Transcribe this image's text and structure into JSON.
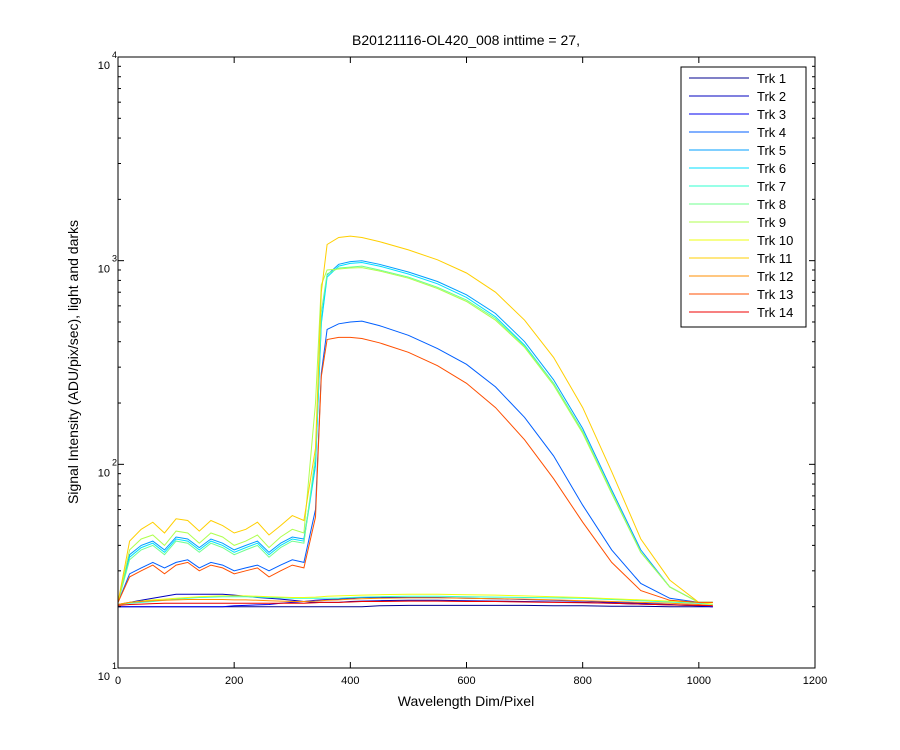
{
  "chart_data": {
    "type": "line",
    "title": "B20121116-OL420_008 inttime = 27,",
    "xlabel": "Wavelength Dim/Pixel",
    "ylabel": "Signal Intensity (ADU/pix/sec), light and darks",
    "xlim": [
      0,
      1200
    ],
    "ylim": [
      10,
      10000
    ],
    "yscale": "log",
    "x_ticks": [
      "0",
      "200",
      "400",
      "600",
      "800",
      "1000",
      "1200"
    ],
    "y_ticks": [
      {
        "base": "10",
        "exp": "1"
      },
      {
        "base": "10",
        "exp": "2"
      },
      {
        "base": "10",
        "exp": "3"
      },
      {
        "base": "10",
        "exp": "4"
      }
    ],
    "grid": false,
    "legend_position": "top-right",
    "x": [
      0,
      20,
      40,
      60,
      80,
      100,
      120,
      140,
      160,
      180,
      200,
      220,
      240,
      260,
      280,
      300,
      320,
      340,
      350,
      360,
      380,
      400,
      420,
      450,
      500,
      550,
      600,
      650,
      700,
      750,
      800,
      850,
      900,
      950,
      1000,
      1024
    ],
    "series": [
      {
        "name": "Trk 1",
        "color": "#00008f",
        "values": [
          20,
          20,
          20,
          20,
          20,
          20,
          20,
          20,
          20,
          20,
          20,
          20,
          20,
          20,
          20,
          20,
          20,
          20,
          20,
          20,
          20,
          20,
          20,
          20.2,
          20.3,
          20.3,
          20.3,
          20.3,
          20.3,
          20.2,
          20.2,
          20.1,
          20.1,
          20,
          20,
          20
        ]
      },
      {
        "name": "Trk 2",
        "color": "#0000bf",
        "values": [
          20.5,
          21,
          21.5,
          22,
          22.5,
          23,
          23,
          23,
          23,
          23,
          22.8,
          22.5,
          22.2,
          22,
          21.8,
          21.5,
          21.2,
          21,
          21,
          21,
          21,
          21.2,
          21.3,
          21.4,
          21.5,
          21.5,
          21.4,
          21.3,
          21.2,
          21.1,
          21,
          20.8,
          20.6,
          20.4,
          20.2,
          20
        ]
      },
      {
        "name": "Trk 3",
        "color": "#0000ef",
        "values": [
          20,
          20,
          20,
          20,
          20,
          20,
          20,
          20,
          20,
          20,
          20.2,
          20.3,
          20.4,
          20.5,
          20.8,
          21,
          21.2,
          21.5,
          21.6,
          21.7,
          21.8,
          22,
          22.2,
          22.2,
          22.2,
          22.2,
          22,
          21.9,
          21.7,
          21.5,
          21.3,
          21,
          20.8,
          20.5,
          20.2,
          20
        ]
      },
      {
        "name": "Trk 4",
        "color": "#005fff",
        "values": [
          21,
          29,
          31,
          33,
          31,
          33,
          34,
          31,
          33,
          32,
          30,
          31,
          32,
          30,
          32,
          34,
          33,
          60,
          280,
          460,
          490,
          500,
          505,
          480,
          430,
          370,
          310,
          240,
          170,
          110,
          63,
          38,
          26,
          22,
          21,
          21
        ]
      },
      {
        "name": "Trk 5",
        "color": "#009fff",
        "values": [
          21,
          36,
          40,
          42,
          38,
          44,
          43,
          39,
          43,
          41,
          38,
          40,
          42,
          37,
          41,
          44,
          43,
          100,
          500,
          850,
          960,
          990,
          1000,
          960,
          880,
          790,
          680,
          550,
          400,
          260,
          150,
          75,
          38,
          25,
          21,
          21
        ]
      },
      {
        "name": "Trk 6",
        "color": "#00dfff",
        "values": [
          21,
          35,
          39,
          41,
          37,
          43,
          42,
          38,
          42,
          40,
          37,
          39,
          41,
          36,
          40,
          43,
          42,
          98,
          490,
          830,
          940,
          970,
          980,
          940,
          860,
          770,
          660,
          530,
          385,
          250,
          145,
          72,
          37,
          25,
          21,
          21
        ]
      },
      {
        "name": "Trk 7",
        "color": "#2fffcf",
        "values": [
          20.5,
          20.8,
          21,
          21.2,
          21.5,
          21.8,
          22,
          22.2,
          22.3,
          22.4,
          22.4,
          22.4,
          22.3,
          22.2,
          22.1,
          22,
          22,
          22,
          22,
          22,
          22,
          22.2,
          22.3,
          22.4,
          22.5,
          22.5,
          22.4,
          22.3,
          22.2,
          22.1,
          22,
          21.7,
          21.4,
          21.1,
          20.8,
          20.5
        ]
      },
      {
        "name": "Trk 8",
        "color": "#6fff8f",
        "values": [
          21,
          34,
          38,
          40,
          36,
          42,
          41,
          37,
          41,
          39,
          36,
          38,
          40,
          35,
          39,
          42,
          41,
          110,
          560,
          860,
          920,
          930,
          940,
          900,
          830,
          740,
          640,
          520,
          380,
          250,
          145,
          73,
          37,
          25,
          21,
          21
        ]
      },
      {
        "name": "Trk 9",
        "color": "#afff4f",
        "values": [
          21,
          38,
          43,
          45,
          40,
          47,
          46,
          41,
          46,
          44,
          40,
          42,
          45,
          39,
          44,
          48,
          46,
          200,
          760,
          900,
          910,
          920,
          925,
          890,
          820,
          730,
          630,
          510,
          375,
          245,
          142,
          72,
          37,
          25,
          21,
          21
        ]
      },
      {
        "name": "Trk 10",
        "color": "#efff0f",
        "values": [
          20.5,
          21,
          21.3,
          21.6,
          21.8,
          22,
          22.2,
          22.4,
          22.5,
          22.6,
          22.6,
          22.6,
          22.5,
          22.4,
          22.3,
          22.2,
          22.2,
          22.3,
          22.4,
          22.5,
          22.6,
          22.7,
          22.8,
          22.9,
          23,
          23,
          22.9,
          22.8,
          22.6,
          22.4,
          22.2,
          21.9,
          21.6,
          21.3,
          21,
          20.6
        ]
      },
      {
        "name": "Trk 11",
        "color": "#ffcf00",
        "values": [
          21,
          42,
          48,
          52,
          46,
          54,
          53,
          47,
          53,
          50,
          46,
          48,
          52,
          45,
          50,
          56,
          53,
          120,
          700,
          1200,
          1300,
          1320,
          1300,
          1240,
          1130,
          1010,
          870,
          700,
          510,
          335,
          190,
          92,
          43,
          27,
          21,
          21
        ]
      },
      {
        "name": "Trk 12",
        "color": "#ff8f00",
        "values": [
          20.5,
          21,
          21.2,
          21.4,
          21.5,
          21.6,
          21.7,
          21.7,
          21.7,
          21.7,
          21.6,
          21.6,
          21.5,
          21.4,
          21.3,
          21.2,
          21.2,
          21.3,
          21.4,
          21.5,
          21.6,
          21.8,
          21.9,
          22,
          22.1,
          22.1,
          22,
          21.9,
          21.8,
          21.6,
          21.4,
          21.2,
          21,
          20.8,
          20.5,
          20.2
        ]
      },
      {
        "name": "Trk 13",
        "color": "#ff4f00",
        "values": [
          21,
          28,
          30,
          32,
          29,
          32,
          33,
          30,
          32,
          31,
          29,
          30,
          31,
          28,
          30,
          32,
          31,
          55,
          270,
          410,
          420,
          420,
          415,
          395,
          355,
          305,
          250,
          190,
          132,
          85,
          52,
          33,
          24,
          21.5,
          21,
          21
        ]
      },
      {
        "name": "Trk 14",
        "color": "#ef0000",
        "values": [
          20.3,
          20.5,
          20.6,
          20.7,
          20.8,
          20.8,
          20.8,
          20.8,
          20.8,
          20.8,
          20.8,
          20.8,
          20.8,
          20.8,
          20.8,
          20.8,
          20.8,
          20.9,
          21,
          21,
          21,
          21.1,
          21.2,
          21.2,
          21.3,
          21.3,
          21.2,
          21.2,
          21.1,
          21,
          20.9,
          20.8,
          20.6,
          20.4,
          20.3,
          20.2
        ]
      }
    ]
  }
}
